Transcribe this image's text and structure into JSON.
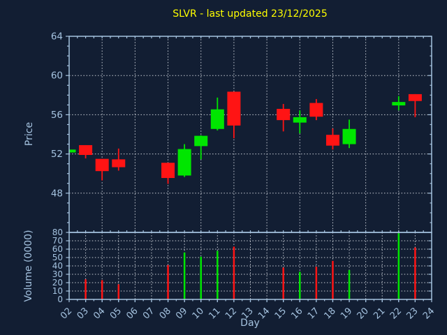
{
  "colors": {
    "background": "#121e33",
    "frame": "#a5c3e0",
    "text": "#a5c3e0",
    "title": "#ffff00",
    "grid": "#c9ced6",
    "bull": "#00e600",
    "bear": "#ff1414"
  },
  "chart_data": {
    "type": "candlestick",
    "title": "SLVR - last updated 23/12/2025",
    "xlabel": "Day",
    "x_axis": {
      "range": [
        2,
        24
      ],
      "tick_labels": [
        "02",
        "03",
        "04",
        "05",
        "06",
        "07",
        "08",
        "09",
        "10",
        "11",
        "12",
        "13",
        "14",
        "15",
        "16",
        "17",
        "18",
        "19",
        "20",
        "21",
        "22",
        "23",
        "24"
      ],
      "tick_rotation_deg": 45,
      "price_grid_days": [
        4,
        6,
        8,
        10,
        12,
        14,
        16,
        18,
        20,
        22
      ],
      "volume_grid_days": [
        3,
        4,
        5,
        6,
        7,
        8,
        9,
        10,
        11,
        12,
        13,
        14,
        15,
        16,
        17,
        18,
        19,
        20,
        21,
        22,
        23
      ]
    },
    "price_panel": {
      "ylabel": "Price",
      "ylim": [
        44,
        64
      ],
      "yticks": [
        48,
        52,
        56,
        60,
        64
      ],
      "minor_step": 1,
      "grid": true
    },
    "volume_panel": {
      "ylabel": "Volume (0000)",
      "ylim": [
        0,
        80
      ],
      "yticks": [
        0,
        10,
        20,
        30,
        40,
        50,
        60,
        70,
        80
      ],
      "grid": true
    },
    "candles": [
      {
        "day": 2,
        "open": 52.15,
        "high": 52.45,
        "low": 52.1,
        "close": 52.45,
        "volume": 0
      },
      {
        "day": 3,
        "open": 52.9,
        "high": 52.9,
        "low": 51.55,
        "close": 51.9,
        "volume": 24
      },
      {
        "day": 4,
        "open": 51.5,
        "high": 51.5,
        "low": 49.3,
        "close": 50.25,
        "volume": 23
      },
      {
        "day": 5,
        "open": 51.45,
        "high": 52.55,
        "low": 50.3,
        "close": 50.65,
        "volume": 18
      },
      {
        "day": 8,
        "open": 51.1,
        "high": 51.1,
        "low": 48.95,
        "close": 49.55,
        "volume": 41
      },
      {
        "day": 9,
        "open": 49.8,
        "high": 53.0,
        "low": 49.65,
        "close": 52.5,
        "volume": 56
      },
      {
        "day": 10,
        "open": 52.8,
        "high": 53.9,
        "low": 51.45,
        "close": 53.85,
        "volume": 51
      },
      {
        "day": 11,
        "open": 54.55,
        "high": 57.75,
        "low": 54.4,
        "close": 56.55,
        "volume": 58
      },
      {
        "day": 12,
        "open": 58.35,
        "high": 58.35,
        "low": 53.6,
        "close": 54.9,
        "volume": 63
      },
      {
        "day": 15,
        "open": 56.6,
        "high": 57.1,
        "low": 54.3,
        "close": 55.45,
        "volume": 38
      },
      {
        "day": 16,
        "open": 55.2,
        "high": 56.45,
        "low": 54.1,
        "close": 55.75,
        "volume": 33
      },
      {
        "day": 17,
        "open": 57.2,
        "high": 57.6,
        "low": 55.45,
        "close": 55.8,
        "volume": 39
      },
      {
        "day": 18,
        "open": 53.95,
        "high": 54.6,
        "low": 52.45,
        "close": 52.85,
        "volume": 46
      },
      {
        "day": 19,
        "open": 53.0,
        "high": 55.5,
        "low": 52.6,
        "close": 54.55,
        "volume": 35
      },
      {
        "day": 22,
        "open": 56.95,
        "high": 57.9,
        "low": 56.45,
        "close": 57.3,
        "volume": 79
      },
      {
        "day": 23,
        "open": 58.1,
        "high": 58.1,
        "low": 55.75,
        "close": 57.4,
        "volume": 62
      }
    ]
  }
}
